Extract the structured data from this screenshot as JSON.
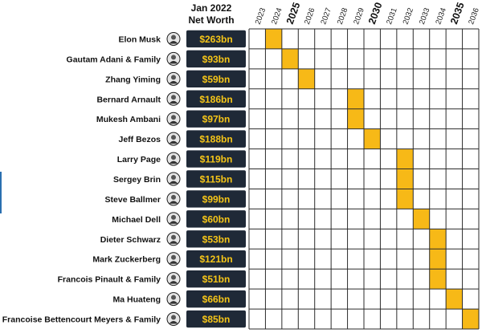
{
  "header": {
    "line1": "Jan 2022",
    "line2": "Net Worth"
  },
  "colors": {
    "highlight": "#f7b917",
    "badge": "#1f2937",
    "worth_text": "#f5c518",
    "grid": "#2b2b2b"
  },
  "chart_data": {
    "type": "table",
    "x": [
      2023,
      2024,
      2025,
      2026,
      2027,
      2028,
      2029,
      2030,
      2031,
      2032,
      2033,
      2034,
      2035,
      2036
    ],
    "major_years": [
      2025,
      2030,
      2035
    ],
    "rows": [
      {
        "name": "Elon Musk",
        "net_worth": "$263bn",
        "year": 2024
      },
      {
        "name": "Gautam Adani & Family",
        "net_worth": "$93bn",
        "year": 2025
      },
      {
        "name": "Zhang Yiming",
        "net_worth": "$59bn",
        "year": 2026
      },
      {
        "name": "Bernard Arnault",
        "net_worth": "$186bn",
        "year": 2029
      },
      {
        "name": "Mukesh Ambani",
        "net_worth": "$97bn",
        "year": 2029
      },
      {
        "name": "Jeff Bezos",
        "net_worth": "$188bn",
        "year": 2030
      },
      {
        "name": "Larry Page",
        "net_worth": "$119bn",
        "year": 2032
      },
      {
        "name": "Sergey Brin",
        "net_worth": "$115bn",
        "year": 2032
      },
      {
        "name": "Steve Ballmer",
        "net_worth": "$99bn",
        "year": 2032
      },
      {
        "name": "Michael Dell",
        "net_worth": "$60bn",
        "year": 2033
      },
      {
        "name": "Dieter Schwarz",
        "net_worth": "$53bn",
        "year": 2034
      },
      {
        "name": "Mark Zuckerberg",
        "net_worth": "$121bn",
        "year": 2034
      },
      {
        "name": "Francois Pinault & Family",
        "net_worth": "$51bn",
        "year": 2034
      },
      {
        "name": "Ma Huateng",
        "net_worth": "$66bn",
        "year": 2035
      },
      {
        "name": "Francoise Bettencourt Meyers & Family",
        "net_worth": "$85bn",
        "year": 2036
      }
    ]
  }
}
